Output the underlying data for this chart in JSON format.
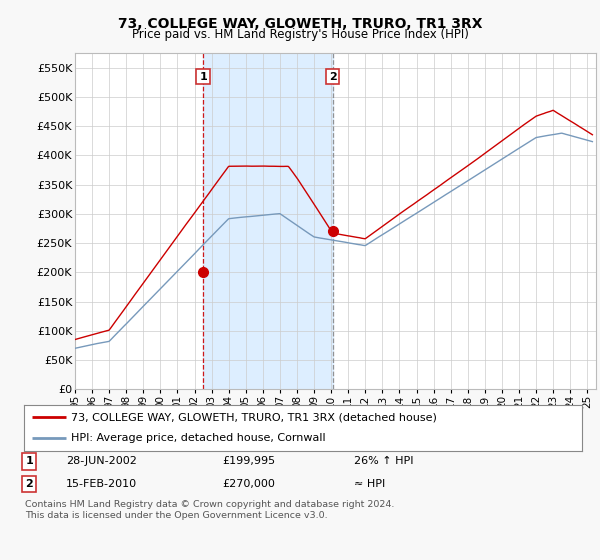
{
  "title": "73, COLLEGE WAY, GLOWETH, TRURO, TR1 3RX",
  "subtitle": "Price paid vs. HM Land Registry's House Price Index (HPI)",
  "legend_label_red": "73, COLLEGE WAY, GLOWETH, TRURO, TR1 3RX (detached house)",
  "legend_label_blue": "HPI: Average price, detached house, Cornwall",
  "transaction1_date": "28-JUN-2002",
  "transaction1_price": "£199,995",
  "transaction1_hpi": "26% ↑ HPI",
  "transaction2_date": "15-FEB-2010",
  "transaction2_price": "£270,000",
  "transaction2_hpi": "≈ HPI",
  "footer": "Contains HM Land Registry data © Crown copyright and database right 2024.\nThis data is licensed under the Open Government Licence v3.0.",
  "ylim": [
    0,
    575000
  ],
  "yticks": [
    0,
    50000,
    100000,
    150000,
    200000,
    250000,
    300000,
    350000,
    400000,
    450000,
    500000,
    550000
  ],
  "ytick_labels": [
    "£0",
    "£50K",
    "£100K",
    "£150K",
    "£200K",
    "£250K",
    "£300K",
    "£350K",
    "£400K",
    "£450K",
    "£500K",
    "£550K"
  ],
  "red_color": "#cc0000",
  "blue_color": "#7799bb",
  "shade_color": "#ddeeff",
  "marker1_y": 199995,
  "marker2_y": 270000,
  "vline1_x": 2002.5,
  "vline2_x": 2010.1,
  "xmin": 1995,
  "xmax": 2025.5
}
